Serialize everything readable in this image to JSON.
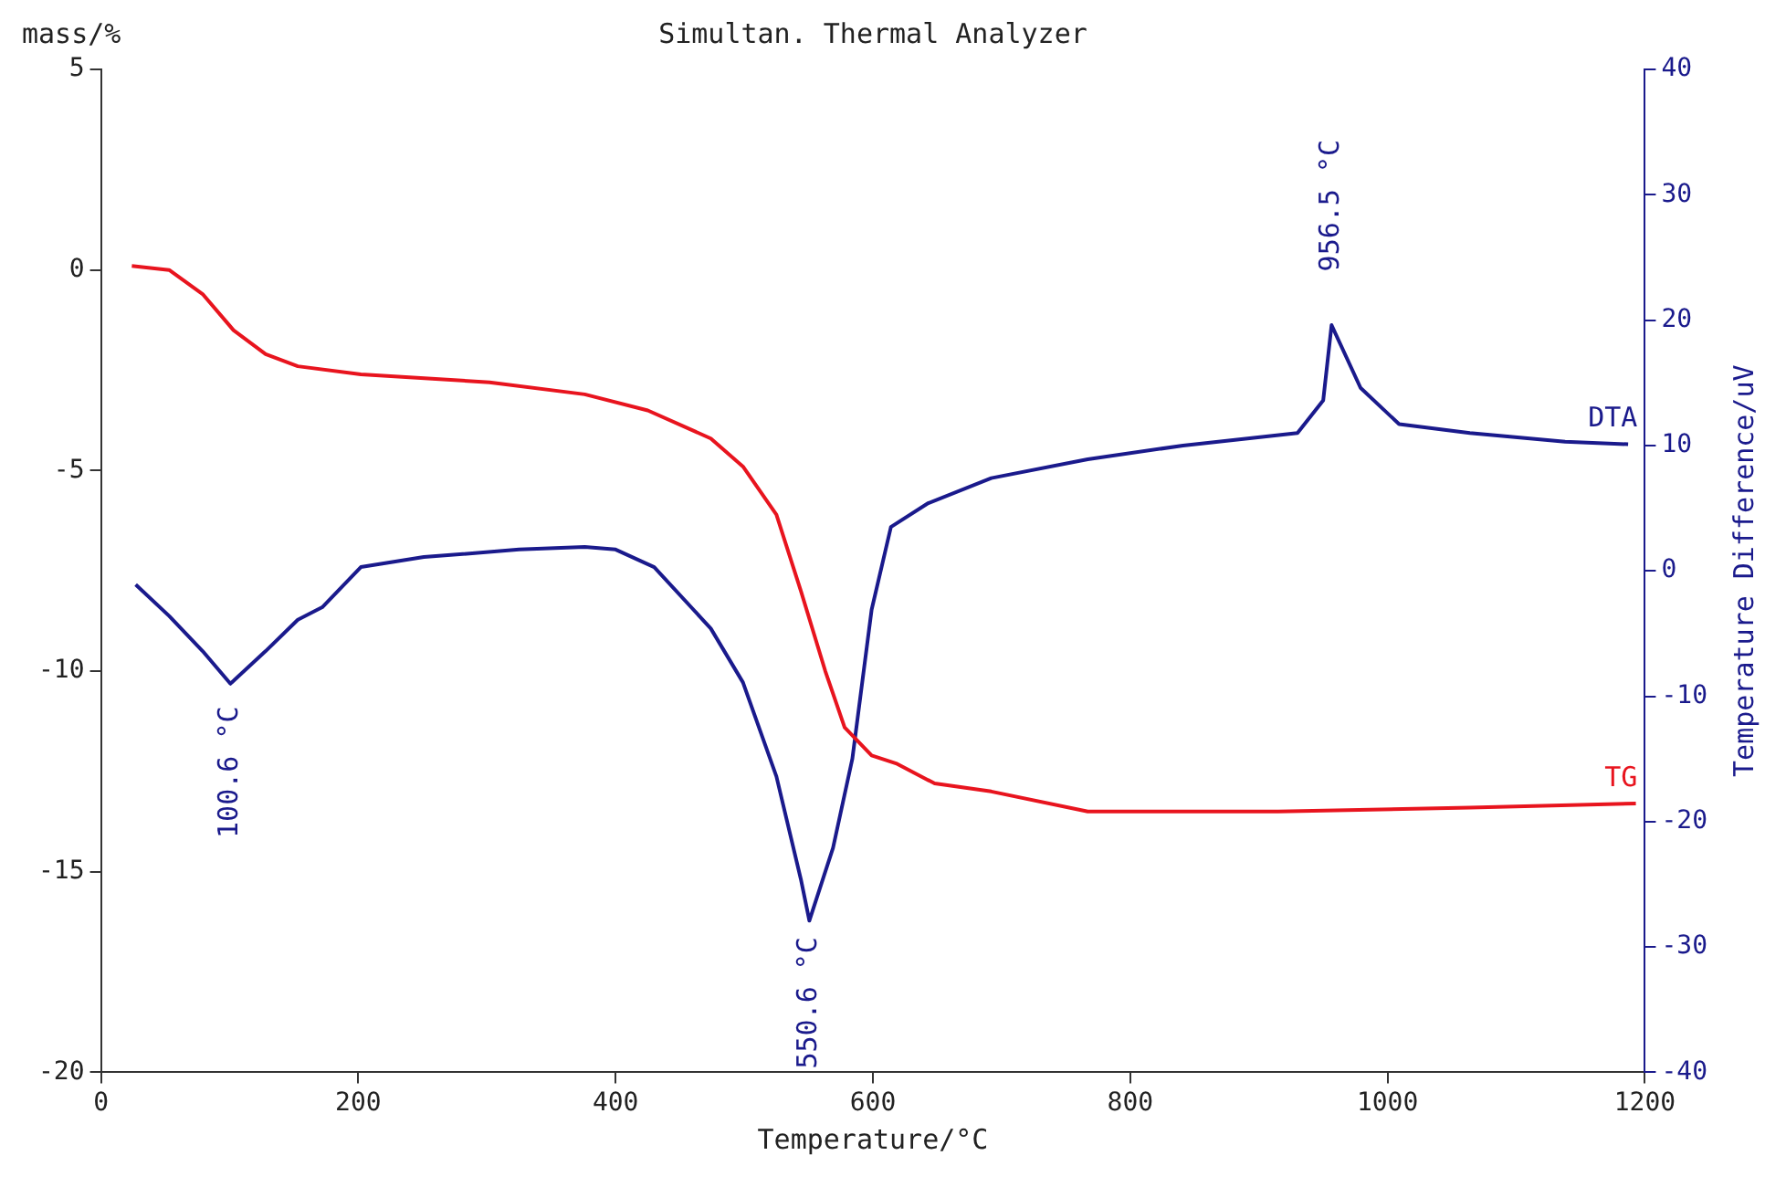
{
  "chart_data": {
    "type": "line",
    "title": "Simultan. Thermal Analyzer",
    "xlabel": "Temperature/°C",
    "ylabel": "mass/%",
    "y2label": "Temperature Difference/uV",
    "xlim": [
      0,
      1200
    ],
    "xticks": [
      0,
      200,
      400,
      600,
      800,
      1000,
      1200
    ],
    "ylim": [
      -20,
      5
    ],
    "yticks": [
      -20,
      -15,
      -10,
      -5,
      0,
      5
    ],
    "y2lim": [
      -40,
      40
    ],
    "y2ticks": [
      -40,
      -30,
      -20,
      -10,
      0,
      10,
      20,
      30,
      40
    ],
    "grid": false,
    "legend": false,
    "marker": "none",
    "line_style": "solid",
    "series": [
      {
        "name": "TG",
        "color": "#e8141e",
        "x": [
          24,
          53,
          79,
          103,
          128,
          153,
          202,
          302,
          376,
          425,
          474,
          499,
          525,
          544,
          563,
          578,
          599,
          618,
          648,
          692,
          767,
          915,
          1064,
          1193
        ],
        "values": [
          0.1,
          0,
          -0.6,
          -1.5,
          -2.1,
          -2.4,
          -2.6,
          -2.8,
          -3.1,
          -3.5,
          -4.2,
          -4.9,
          -6.1,
          -8.0,
          -10.0,
          -11.4,
          -12.1,
          -12.3,
          -12.8,
          -13.0,
          -13.5,
          -13.5,
          -13.4,
          -13.3
        ]
      },
      {
        "name": "DTA",
        "color": "#1a1a8c",
        "axis": "y2",
        "x": [
          27,
          53,
          79,
          100.6,
          128,
          153,
          172,
          202,
          251,
          325,
          376,
          400,
          430,
          474,
          499,
          525,
          544,
          550.6,
          569,
          584,
          599,
          614,
          643,
          692,
          767,
          841,
          930,
          950,
          956.5,
          979,
          1009,
          1064,
          1138,
          1187
        ],
        "values": [
          -1.1,
          -3.6,
          -6.4,
          -9.0,
          -6.4,
          -3.9,
          -2.9,
          0.3,
          1.1,
          1.7,
          1.9,
          1.7,
          0.3,
          -4.6,
          -8.9,
          -16.4,
          -24.6,
          -27.9,
          -22.1,
          -15.0,
          -3.1,
          3.5,
          5.4,
          7.4,
          8.9,
          10.0,
          11.0,
          13.6,
          19.6,
          14.6,
          11.7,
          11.0,
          10.3,
          10.1
        ]
      }
    ],
    "annotations": [
      "100.6 °C",
      "550.6 °C",
      "956.5 °C"
    ]
  }
}
